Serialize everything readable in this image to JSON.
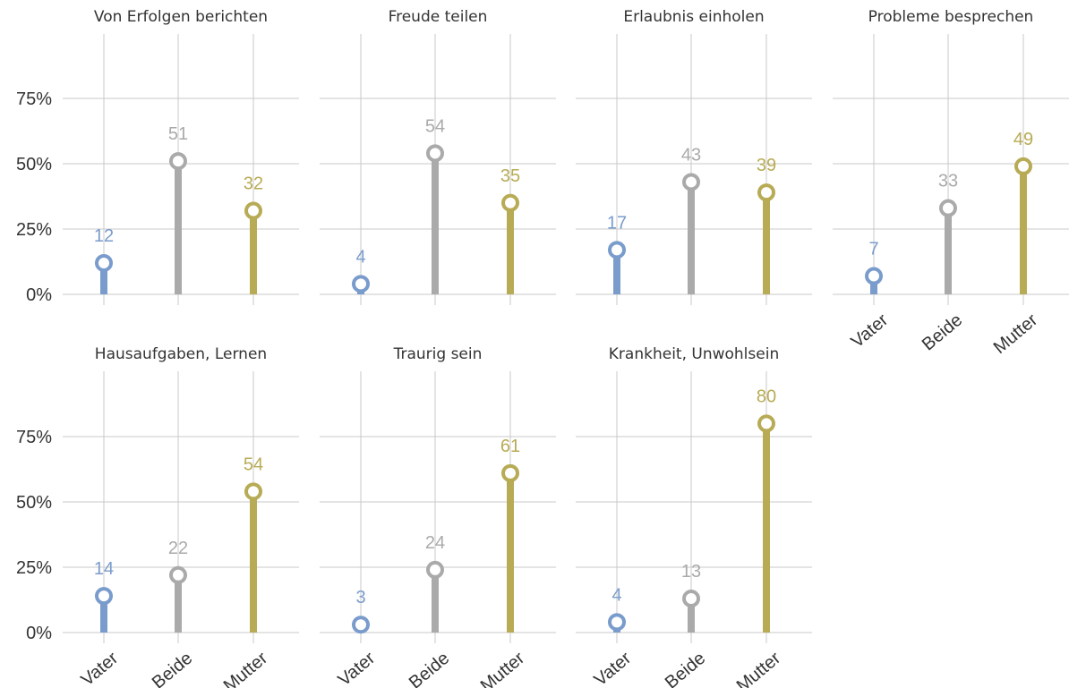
{
  "chart_data": {
    "type": "lollipop",
    "facets": true,
    "categories": [
      "Vater",
      "Beide",
      "Mutter"
    ],
    "colors": {
      "Vater": "#7a9ccc",
      "Beide": "#aaaaaa",
      "Mutter": "#b8ab55",
      "grid": "#c8c8c8",
      "text": "#333333"
    },
    "y_ticks": [
      "0%",
      "25%",
      "50%",
      "75%"
    ],
    "y_tick_values": [
      0,
      25,
      50,
      75
    ],
    "ylim": [
      0,
      100
    ],
    "grid": true,
    "panels": [
      {
        "title": "Von Erfolgen berichten",
        "values": [
          12,
          51,
          32
        ],
        "labels": [
          "12",
          "51",
          "32"
        ]
      },
      {
        "title": "Freude teilen",
        "values": [
          4,
          54,
          35
        ],
        "labels": [
          "4",
          "54",
          "35"
        ]
      },
      {
        "title": "Erlaubnis einholen",
        "values": [
          17,
          43,
          39
        ],
        "labels": [
          "17",
          "43",
          "39"
        ]
      },
      {
        "title": "Probleme besprechen",
        "values": [
          7,
          33,
          49
        ],
        "labels": [
          "7",
          "33",
          "49"
        ]
      },
      {
        "title": "Hausaufgaben, Lernen",
        "values": [
          14,
          22,
          54
        ],
        "labels": [
          "14",
          "22",
          "54"
        ]
      },
      {
        "title": "Traurig sein",
        "values": [
          3,
          24,
          61
        ],
        "labels": [
          "3",
          "24",
          "61"
        ]
      },
      {
        "title": "Krankheit, Unwohlsein",
        "values": [
          4,
          13,
          80
        ],
        "labels": [
          "4",
          "13",
          "80"
        ]
      }
    ]
  }
}
